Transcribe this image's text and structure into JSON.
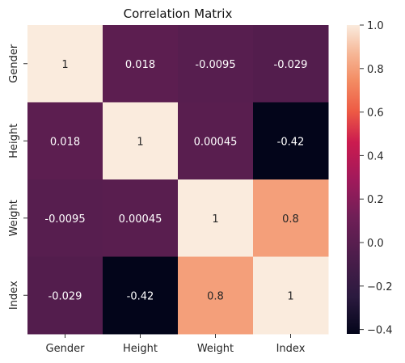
{
  "chart_data": {
    "type": "heatmap",
    "title": "Correlation Matrix",
    "row_labels": [
      "Gender",
      "Height",
      "Weight",
      "Index"
    ],
    "col_labels": [
      "Gender",
      "Height",
      "Weight",
      "Index"
    ],
    "values": [
      [
        1,
        0.018,
        -0.0095,
        -0.029
      ],
      [
        0.018,
        1,
        0.00045,
        -0.42
      ],
      [
        -0.0095,
        0.00045,
        1,
        0.8
      ],
      [
        -0.029,
        -0.42,
        0.8,
        1
      ]
    ],
    "annotations": [
      [
        "1",
        "0.018",
        "-0.0095",
        "-0.029"
      ],
      [
        "0.018",
        "1",
        "0.00045",
        "-0.42"
      ],
      [
        "-0.0095",
        "0.00045",
        "1",
        "0.8"
      ],
      [
        "-0.029",
        "-0.42",
        "0.8",
        "1"
      ]
    ],
    "colorbar": {
      "vmin": -0.42,
      "vmax": 1.0,
      "ticks": [
        "1.0",
        "0.8",
        "0.6",
        "0.4",
        "0.2",
        "0.0",
        "−0.2",
        "−0.4"
      ],
      "colormap": "rocket"
    }
  }
}
